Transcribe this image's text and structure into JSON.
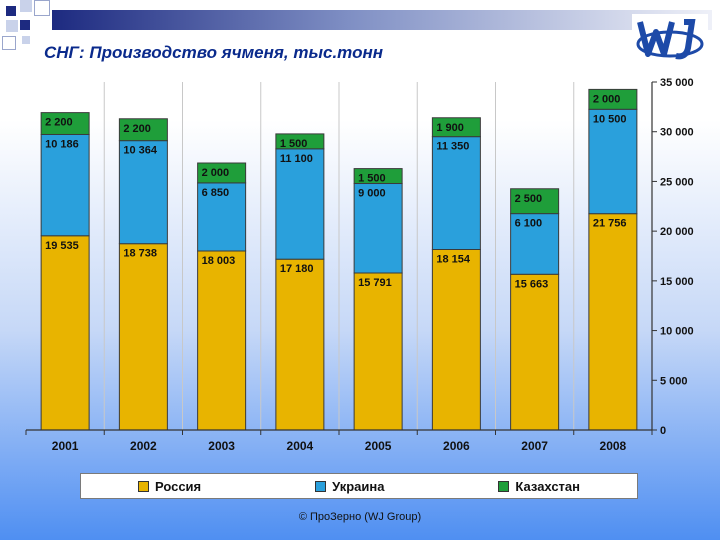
{
  "header": {
    "title": "СНГ: Производство ячменя, тыс.тонн"
  },
  "footer": {
    "copyright": "© ПроЗерно (WJ Group)"
  },
  "colors": {
    "russia": "#e8b400",
    "ukraine": "#2aa0dc",
    "kazakhstan": "#1f9e3a",
    "title": "#0a2a8c"
  },
  "chart_data": {
    "type": "bar",
    "stacked": true,
    "title": "СНГ: Производство ячменя, тыс.тонн",
    "categories": [
      "2001",
      "2002",
      "2003",
      "2004",
      "2005",
      "2006",
      "2007",
      "2008"
    ],
    "series": [
      {
        "name": "Россия",
        "values": [
          19535,
          18738,
          18003,
          17180,
          15791,
          18154,
          15663,
          21756
        ],
        "labels": [
          "19 535",
          "18 738",
          "18 003",
          "17 180",
          "15 791",
          "18 154",
          "15 663",
          "21 756"
        ]
      },
      {
        "name": "Украина",
        "values": [
          10186,
          10364,
          6850,
          11100,
          9000,
          11350,
          6100,
          10500
        ],
        "labels": [
          "10 186",
          "10 364",
          "6 850",
          "11 100",
          "9 000",
          "11 350",
          "6 100",
          "10 500"
        ]
      },
      {
        "name": "Казахстан",
        "values": [
          2200,
          2200,
          2000,
          1500,
          1500,
          1900,
          2500,
          2000
        ],
        "labels": [
          "2 200",
          "2 200",
          "2 000",
          "1 500",
          "1 500",
          "1 900",
          "2 500",
          "2 000"
        ]
      }
    ],
    "ylim": [
      0,
      35000
    ],
    "yticks": [
      0,
      5000,
      10000,
      15000,
      20000,
      25000,
      30000,
      35000
    ],
    "ytick_labels": [
      "0",
      "5 000",
      "10 000",
      "15 000",
      "20 000",
      "25 000",
      "30 000",
      "35 000"
    ],
    "y_axis_side": "right",
    "grid": "vertical",
    "legend_position": "bottom"
  }
}
